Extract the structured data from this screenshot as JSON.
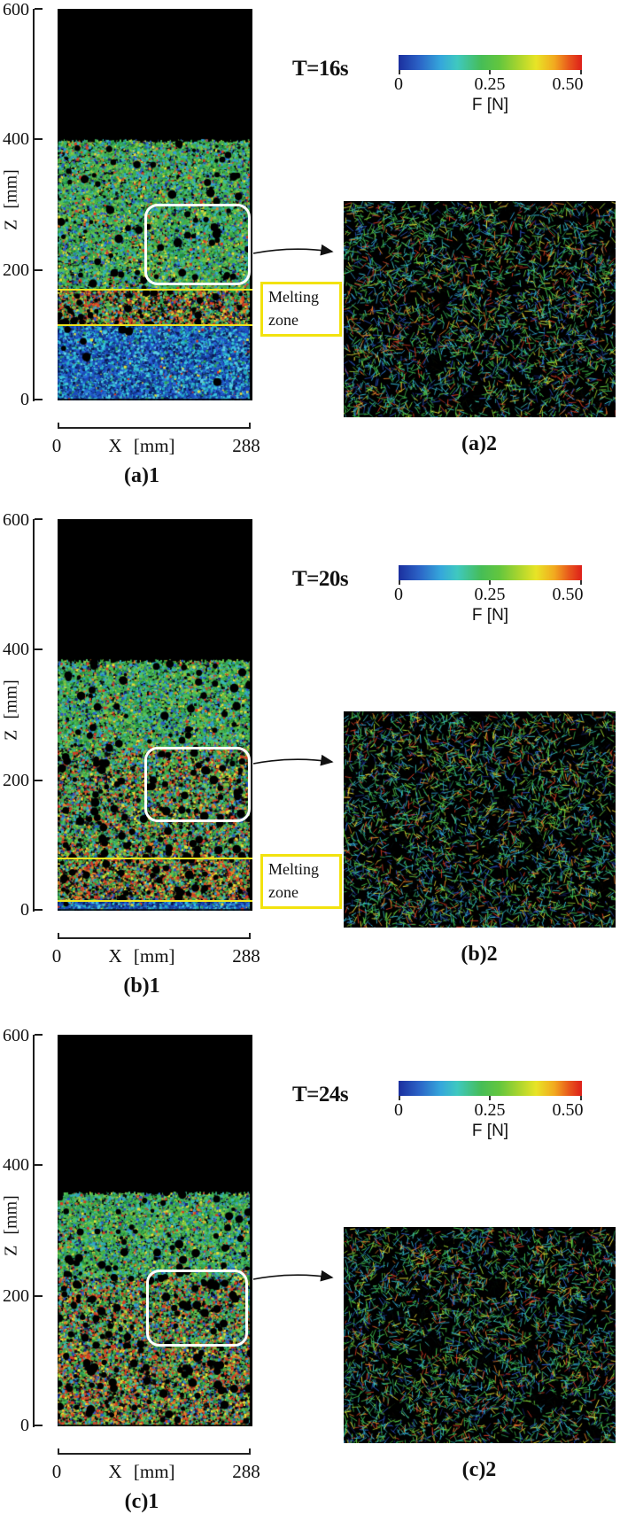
{
  "axes": {
    "z_label": "Z [mm]",
    "z_ticks": [
      "600",
      "400",
      "200",
      "0"
    ],
    "x_label": "X [mm]",
    "x_min": "0",
    "x_max": "288"
  },
  "colorbar": {
    "ticks": [
      "0",
      "0.25",
      "0.50"
    ],
    "label": "F [N]"
  },
  "melting_zone": {
    "line1": "Melting",
    "line2": "zone"
  },
  "panels": [
    {
      "time_label": "T=16s",
      "plot_label": "(a)1",
      "inset_label": "(a)2"
    },
    {
      "time_label": "T=20s",
      "plot_label": "(b)1",
      "inset_label": "(b)2"
    },
    {
      "time_label": "T=24s",
      "plot_label": "(c)1",
      "inset_label": "(c)2"
    }
  ],
  "colors": {
    "melt_line": "#ede41d",
    "callout_border": "#f2e20e",
    "zoom_outline": "#ffffff",
    "background_void": "#000000"
  },
  "chart_data": {
    "type": "heatmap",
    "x": {
      "label": "X [mm]",
      "range": [
        0,
        288
      ]
    },
    "z": {
      "label": "Z [mm]",
      "range": [
        0,
        600
      ]
    },
    "colorbar": {
      "label": "F [N]",
      "range": [
        0,
        0.5
      ],
      "ticks": [
        0,
        0.25,
        0.5
      ],
      "colormap": "jet"
    },
    "panels": [
      {
        "time_s": 16,
        "time_label": "T=16s",
        "labels": [
          "(a)1",
          "(a)2"
        ],
        "bed_surface_z_mm": 400,
        "melting_zone_z_mm": [
          115,
          170
        ],
        "solidified_layer_z_mm": [
          0,
          115
        ],
        "zoom_box": {
          "x_mm": [
            128,
            285
          ],
          "z_mm": [
            176,
            301
          ]
        },
        "melting_zone_annotated": true
      },
      {
        "time_s": 20,
        "time_label": "T=20s",
        "labels": [
          "(b)1",
          "(b)2"
        ],
        "bed_surface_z_mm": 385,
        "melting_zone_z_mm": [
          15,
          80
        ],
        "solidified_layer_z_mm": [
          0,
          15
        ],
        "zoom_box": {
          "x_mm": [
            128,
            285
          ],
          "z_mm": [
            136,
            251
          ]
        },
        "melting_zone_annotated": true
      },
      {
        "time_s": 24,
        "time_label": "T=24s",
        "labels": [
          "(c)1",
          "(c)2"
        ],
        "bed_surface_z_mm": 360,
        "melting_zone_z_mm": null,
        "solidified_layer_z_mm": null,
        "zoom_box": {
          "x_mm": [
            131,
            282
          ],
          "z_mm": [
            122,
            240
          ]
        },
        "melting_zone_annotated": false
      }
    ]
  },
  "render": {
    "seeds": [
      11,
      22,
      33
    ],
    "palettes": {
      "green_mix": {
        "colors": [
          "#3fb04a",
          "#55c457",
          "#2fa35d",
          "#37b9b2",
          "#2f9ed2",
          "#8cc83e",
          "#2a58c8",
          "#d93b24",
          "#e8dd38",
          "#1f8f3a",
          "#0a0a0a",
          "#e8832a",
          "#15246e"
        ],
        "weights": [
          20,
          14,
          9,
          12,
          7,
          9,
          6,
          4,
          4,
          8,
          4,
          2,
          3
        ]
      },
      "green_hot": {
        "colors": [
          "#3fb04a",
          "#55c457",
          "#2fa35d",
          "#37b9b2",
          "#2f9ed2",
          "#8cc83e",
          "#2a58c8",
          "#d93b24",
          "#e8dd38",
          "#1f8f3a",
          "#0a0a0a",
          "#e8832a",
          "#15246e"
        ],
        "weights": [
          13,
          8,
          6,
          8,
          5,
          7,
          6,
          13,
          6,
          5,
          13,
          6,
          4
        ]
      },
      "melt_mix": {
        "colors": [
          "#3fb04a",
          "#55c457",
          "#2fa35d",
          "#37b9b2",
          "#2f9ed2",
          "#8cc83e",
          "#2a58c8",
          "#d93b24",
          "#e8dd38",
          "#1f8f3a",
          "#0a0a0a",
          "#e8832a",
          "#15246e"
        ],
        "weights": [
          10,
          5,
          4,
          6,
          3,
          5,
          4,
          17,
          8,
          4,
          18,
          9,
          4
        ]
      },
      "hot_mix": {
        "colors": [
          "#3fb04a",
          "#55c457",
          "#2fa35d",
          "#37b9b2",
          "#2f9ed2",
          "#8cc83e",
          "#2a58c8",
          "#d93b24",
          "#e8dd38",
          "#1f8f3a",
          "#0a0a0a",
          "#e8832a",
          "#15246e"
        ],
        "weights": [
          12,
          6,
          5,
          6,
          4,
          5,
          6,
          16,
          7,
          5,
          16,
          8,
          4
        ]
      },
      "blue_solid": {
        "bg": "#0c2a70",
        "colors": [
          "#1c4cc0",
          "#2a68d8",
          "#38c4de",
          "#22aec6",
          "#133289",
          "#5fd2e6",
          "#2fa35d",
          "#0a1850",
          "#d93b24",
          "#e8dd38"
        ],
        "weights": [
          22,
          14,
          16,
          10,
          16,
          6,
          4,
          10,
          1,
          1
        ]
      }
    },
    "panel_bands": [
      [
        {
          "z": [
            170,
            400
          ],
          "palette": "green_mix",
          "holes": 0.6
        },
        {
          "z": [
            115,
            170
          ],
          "palette": "melt_mix",
          "holes": 1.3
        },
        {
          "z": [
            0,
            115
          ],
          "palette": "blue_solid",
          "holes": 0.1
        }
      ],
      [
        {
          "z": [
            250,
            385
          ],
          "palette": "green_mix",
          "holes": 0.7
        },
        {
          "z": [
            80,
            250
          ],
          "palette": "green_hot",
          "holes": 1.2
        },
        {
          "z": [
            15,
            80
          ],
          "palette": "melt_mix",
          "holes": 1.2
        },
        {
          "z": [
            0,
            15
          ],
          "palette": "blue_solid",
          "holes": 0.1
        }
      ],
      [
        {
          "z": [
            230,
            360
          ],
          "palette": "green_mix",
          "holes": 0.8
        },
        {
          "z": [
            120,
            230
          ],
          "palette": "green_hot",
          "holes": 1.2
        },
        {
          "z": [
            0,
            120
          ],
          "palette": "hot_mix",
          "holes": 1.2
        }
      ]
    ],
    "inset": {
      "segments": 4200,
      "holes": [
        26,
        30,
        36
      ],
      "palette": {
        "colors": [
          "#3fbf4d",
          "#68d140",
          "#2fa35d",
          "#37b9b2",
          "#38c4de",
          "#2f9ed2",
          "#2a58c8",
          "#15246e",
          "#d93b24",
          "#e8832a",
          "#e8dd38",
          "#9fd832"
        ],
        "weights": [
          20,
          7,
          8,
          10,
          8,
          7,
          8,
          7,
          8,
          5,
          6,
          4
        ]
      }
    }
  }
}
